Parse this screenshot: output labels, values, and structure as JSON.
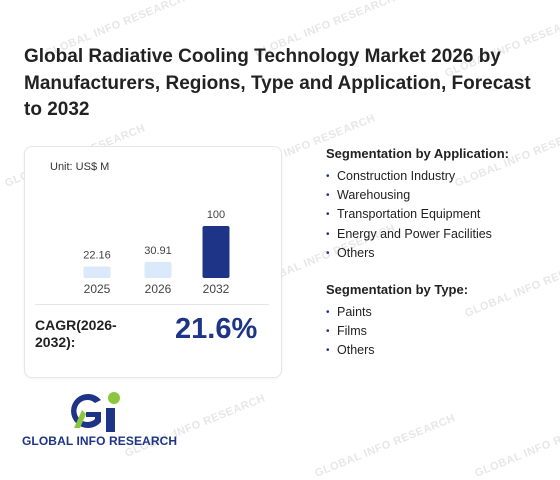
{
  "watermark": "GLOBAL INFO RESEARCH",
  "title": "Global Radiative Cooling Technology Market 2026 by Manufacturers, Regions, Type and Application, Forecast to 2032",
  "chart": {
    "unit_label": "Unit: US$ M",
    "cagr_label": "CAGR(2026-2032):",
    "cagr_value": "21.6%"
  },
  "chart_data": {
    "type": "bar",
    "categories": [
      "2025",
      "2026",
      "2032"
    ],
    "values": [
      22.16,
      30.91,
      100
    ],
    "value_labels": [
      "22.16",
      "30.91",
      "100"
    ],
    "ylabel": "US$ M",
    "ylim": [
      0,
      100
    ],
    "grid": false,
    "colors": [
      "#dbeafb",
      "#dbeafb",
      "#1e3486"
    ]
  },
  "segments": [
    {
      "title": "Segmentation by Application:",
      "items": [
        "Construction Industry",
        "Warehousing",
        "Transportation Equipment",
        "Energy and Power Facilities",
        "Others"
      ]
    },
    {
      "title": "Segmentation by Type:",
      "items": [
        "Paints",
        "Films",
        "Others"
      ]
    }
  ],
  "logo": {
    "text": "GLOBAL INFO RESEARCH",
    "colors": {
      "blue": "#1e3486",
      "green": "#8cc63f"
    }
  }
}
